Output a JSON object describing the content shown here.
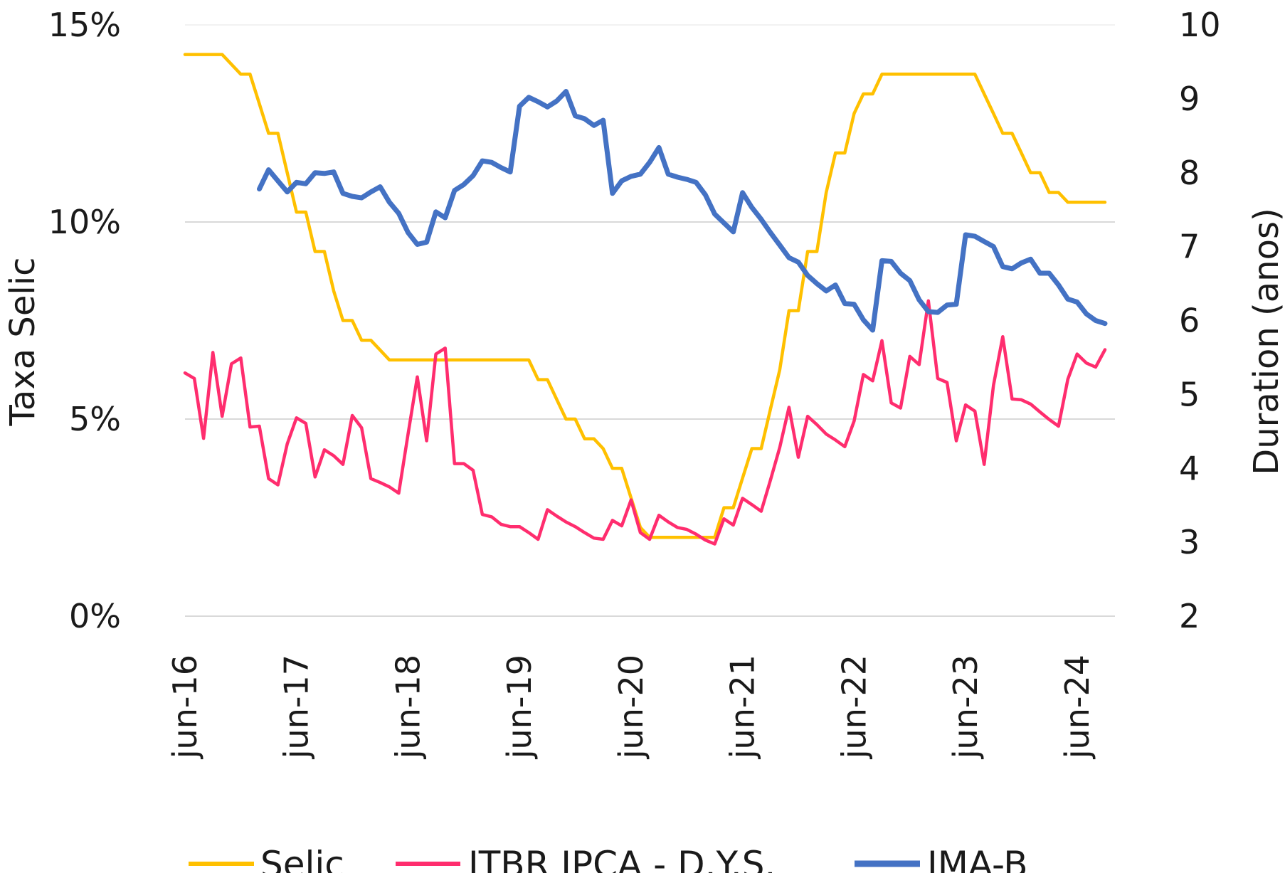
{
  "chart_data": {
    "type": "line",
    "xlabel": "",
    "ylabel": "Taxa Selic",
    "y2label": "Duration (anos)",
    "ylim": [
      0,
      15
    ],
    "y2lim": [
      2,
      10
    ],
    "yticks": [
      "0%",
      "5%",
      "10%",
      "15%"
    ],
    "yticks_values": [
      0,
      5,
      10,
      15
    ],
    "y2ticks": [
      "2",
      "3",
      "4",
      "5",
      "6",
      "7",
      "8",
      "9",
      "10"
    ],
    "y2ticks_values": [
      2,
      3,
      4,
      5,
      6,
      7,
      8,
      9,
      10
    ],
    "xtick_labels": [
      "jun-16",
      "jun-17",
      "jun-18",
      "jun-19",
      "jun-20",
      "jun-21",
      "jun-22",
      "jun-23",
      "jun-24"
    ],
    "grid": true,
    "legend": "bottom",
    "x": [
      "jun-16",
      "jul-16",
      "ago-16",
      "set-16",
      "out-16",
      "nov-16",
      "dez-16",
      "jan-17",
      "fev-17",
      "mar-17",
      "abr-17",
      "mai-17",
      "jun-17",
      "jul-17",
      "ago-17",
      "set-17",
      "out-17",
      "nov-17",
      "dez-17",
      "jan-18",
      "fev-18",
      "mar-18",
      "abr-18",
      "mai-18",
      "jun-18",
      "jul-18",
      "ago-18",
      "set-18",
      "out-18",
      "nov-18",
      "dez-18",
      "jan-19",
      "fev-19",
      "mar-19",
      "abr-19",
      "mai-19",
      "jun-19",
      "jul-19",
      "ago-19",
      "set-19",
      "out-19",
      "nov-19",
      "dez-19",
      "jan-20",
      "fev-20",
      "mar-20",
      "abr-20",
      "mai-20",
      "jun-20",
      "jul-20",
      "ago-20",
      "set-20",
      "out-20",
      "nov-20",
      "dez-20",
      "jan-21",
      "fev-21",
      "mar-21",
      "abr-21",
      "mai-21",
      "jun-21",
      "jul-21",
      "ago-21",
      "set-21",
      "out-21",
      "nov-21",
      "dez-21",
      "jan-22",
      "fev-22",
      "mar-22",
      "abr-22",
      "mai-22",
      "jun-22",
      "jul-22",
      "ago-22",
      "set-22",
      "out-22",
      "nov-22",
      "dez-22",
      "jan-23",
      "fev-23",
      "mar-23",
      "abr-23",
      "mai-23",
      "jun-23",
      "jul-23",
      "ago-23",
      "set-23",
      "out-23",
      "nov-23",
      "dez-23",
      "jan-24",
      "fev-24",
      "mar-24",
      "abr-24",
      "mai-24",
      "jun-24",
      "jul-24",
      "ago-24",
      "set-24"
    ],
    "series": [
      {
        "name": "Selic",
        "axis": "left",
        "color": "#FFC000",
        "values": [
          14.25,
          14.25,
          14.25,
          14.25,
          14.25,
          14.0,
          13.75,
          13.75,
          13.0,
          12.25,
          12.25,
          11.25,
          10.25,
          10.25,
          9.25,
          9.25,
          8.25,
          7.5,
          7.5,
          7.0,
          7.0,
          6.75,
          6.5,
          6.5,
          6.5,
          6.5,
          6.5,
          6.5,
          6.5,
          6.5,
          6.5,
          6.5,
          6.5,
          6.5,
          6.5,
          6.5,
          6.5,
          6.5,
          6.0,
          6.0,
          5.5,
          5.0,
          5.0,
          4.5,
          4.5,
          4.25,
          3.75,
          3.75,
          3.0,
          2.25,
          2.0,
          2.0,
          2.0,
          2.0,
          2.0,
          2.0,
          2.0,
          2.0,
          2.75,
          2.75,
          3.5,
          4.25,
          4.25,
          5.25,
          6.25,
          7.75,
          7.75,
          9.25,
          9.25,
          10.75,
          11.75,
          11.75,
          12.75,
          13.25,
          13.25,
          13.75,
          13.75,
          13.75,
          13.75,
          13.75,
          13.75,
          13.75,
          13.75,
          13.75,
          13.75,
          13.75,
          13.25,
          12.75,
          12.25,
          12.25,
          11.75,
          11.25,
          11.25,
          10.75,
          10.75,
          10.5,
          10.5,
          10.5,
          10.5,
          10.5
        ]
      },
      {
        "name": "ITBR IPCA - D.Y.S.",
        "axis": "left",
        "color": "#FF2D6E",
        "values": [
          6.17,
          6.03,
          4.51,
          6.69,
          5.07,
          6.4,
          6.55,
          4.8,
          4.82,
          3.49,
          3.33,
          4.37,
          5.03,
          4.89,
          3.53,
          4.22,
          4.07,
          3.85,
          5.09,
          4.78,
          3.49,
          3.39,
          3.28,
          3.12,
          4.62,
          6.07,
          4.45,
          6.65,
          6.8,
          3.87,
          3.87,
          3.7,
          2.58,
          2.52,
          2.33,
          2.27,
          2.27,
          2.12,
          1.95,
          2.7,
          2.54,
          2.39,
          2.27,
          2.12,
          1.98,
          1.95,
          2.43,
          2.29,
          2.95,
          2.12,
          1.95,
          2.56,
          2.39,
          2.25,
          2.2,
          2.08,
          1.93,
          1.83,
          2.47,
          2.31,
          2.99,
          2.83,
          2.66,
          3.45,
          4.28,
          5.3,
          4.03,
          5.07,
          4.86,
          4.62,
          4.47,
          4.3,
          4.95,
          6.13,
          5.97,
          6.99,
          5.41,
          5.28,
          6.59,
          6.38,
          8.0,
          6.03,
          5.93,
          4.45,
          5.36,
          5.2,
          3.85,
          5.86,
          7.09,
          5.51,
          5.49,
          5.38,
          5.18,
          4.99,
          4.82,
          6.01,
          6.65,
          6.42,
          6.32,
          6.76
        ]
      },
      {
        "name": "IMA-B",
        "axis": "right",
        "color": "#4472C4",
        "values": [
          null,
          null,
          null,
          null,
          null,
          null,
          null,
          null,
          7.78,
          8.04,
          7.89,
          7.74,
          7.87,
          7.85,
          8.0,
          7.99,
          8.01,
          7.72,
          7.68,
          7.66,
          7.74,
          7.81,
          7.6,
          7.45,
          7.19,
          7.03,
          7.06,
          7.47,
          7.39,
          7.76,
          7.84,
          7.96,
          8.16,
          8.14,
          8.07,
          8.01,
          8.9,
          9.02,
          8.96,
          8.89,
          8.97,
          9.1,
          8.77,
          8.73,
          8.64,
          8.71,
          7.72,
          7.89,
          7.95,
          7.98,
          8.14,
          8.34,
          7.98,
          7.94,
          7.91,
          7.87,
          7.7,
          7.44,
          7.32,
          7.2,
          7.73,
          7.53,
          7.37,
          7.19,
          7.02,
          6.85,
          6.79,
          6.61,
          6.5,
          6.4,
          6.48,
          6.23,
          6.22,
          6.01,
          5.87,
          6.81,
          6.8,
          6.64,
          6.54,
          6.28,
          6.12,
          6.11,
          6.21,
          6.22,
          7.16,
          7.14,
          7.07,
          7.0,
          6.73,
          6.7,
          6.78,
          6.83,
          6.64,
          6.64,
          6.48,
          6.29,
          6.25,
          6.09,
          6.0,
          5.96
        ]
      }
    ]
  }
}
